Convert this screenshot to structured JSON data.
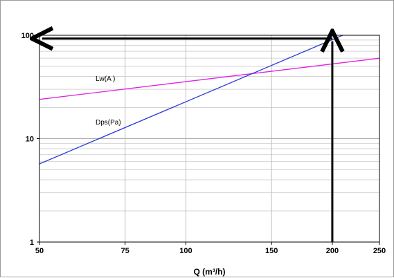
{
  "chart_data": {
    "type": "line",
    "title": "",
    "xlabel": "Q (m³/h)",
    "ylabel": "",
    "x_scale": "log",
    "y_scale": "log",
    "xlim": [
      50,
      250
    ],
    "ylim": [
      1,
      100
    ],
    "x_tick_labels": [
      "50",
      "75",
      "100",
      "150",
      "200",
      "250"
    ],
    "x_tick_values": [
      50,
      75,
      100,
      150,
      200,
      250
    ],
    "y_tick_labels": [
      "1",
      "10",
      "100"
    ],
    "y_tick_values": [
      1,
      10,
      100
    ],
    "grid": true,
    "series": [
      {
        "name": "Lw(A )",
        "color": "#e020e0",
        "x": [
          50,
          250
        ],
        "y": [
          24,
          60
        ]
      },
      {
        "name": "Dps(Pa)",
        "color": "#2a3bd8",
        "x": [
          50,
          210
        ],
        "y": [
          5.7,
          100
        ]
      }
    ],
    "annotations": [
      {
        "type": "arrow",
        "color": "#000000",
        "from": [
          200,
          1
        ],
        "to": [
          200,
          93
        ]
      },
      {
        "type": "arrow",
        "color": "#000000",
        "from": [
          200,
          93
        ],
        "to": [
          50,
          93
        ]
      }
    ]
  }
}
